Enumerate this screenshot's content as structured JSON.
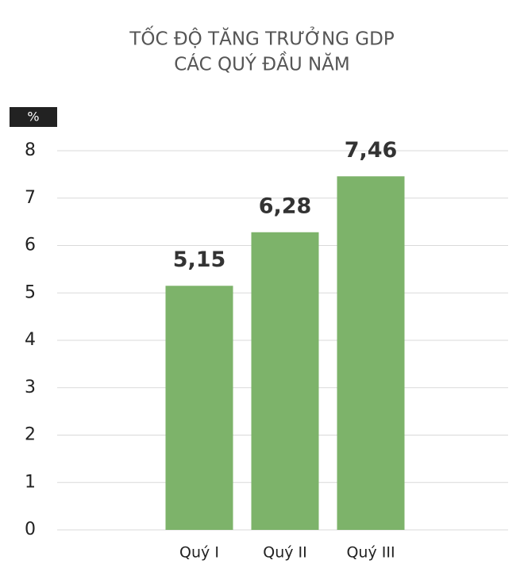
{
  "chart_data": {
    "type": "bar",
    "title": [
      "TỐC ĐỘ TĂNG TRƯỞNG GDP",
      "CÁC QUÝ ĐẦU NĂM"
    ],
    "y_label": "%",
    "categories": [
      "Quý I",
      "Quý II",
      "Quý III"
    ],
    "values": [
      5.15,
      6.28,
      7.46
    ],
    "value_labels": [
      "5,15",
      "6,28",
      "7,46"
    ],
    "color": "#7db36a",
    "ylim": [
      0,
      8
    ],
    "yticks": [
      0,
      1,
      2,
      3,
      4,
      5,
      6,
      7,
      8
    ],
    "grid": true
  }
}
